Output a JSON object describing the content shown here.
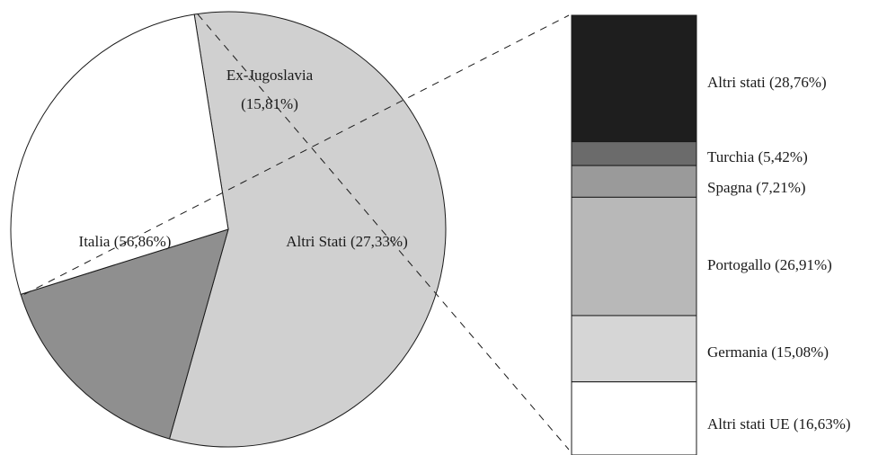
{
  "chart_data": [
    {
      "type": "pie",
      "categories": [
        "Italia",
        "Ex-Jugoslavia",
        "Altri Stati"
      ],
      "values": [
        56.86,
        15.81,
        27.33
      ],
      "labels": [
        "Italia (56,86%)",
        "Ex-Jugoslavia",
        "(15,81%)",
        "Altri Stati (27,33%)"
      ],
      "colors": [
        "#d0d0d0",
        "#8f8f8f",
        "#ffffff"
      ]
    },
    {
      "type": "bar",
      "stacked": true,
      "categories": [
        "Altri stati",
        "Turchia",
        "Spagna",
        "Portogallo",
        "Germania",
        "Altri stati UE"
      ],
      "values": [
        28.76,
        5.42,
        7.21,
        26.91,
        15.08,
        16.63
      ],
      "labels": [
        "Altri stati (28,76%)",
        "Turchia (5,42%)",
        "Spagna (7,21%)",
        "Portogallo (26,91%)",
        "Germania (15,08%)",
        "Altri stati UE (16,63%)"
      ],
      "colors": [
        "#1e1e1e",
        "#6b6b6b",
        "#9a9a9a",
        "#b8b8b8",
        "#d6d6d6",
        "#ffffff"
      ]
    }
  ]
}
